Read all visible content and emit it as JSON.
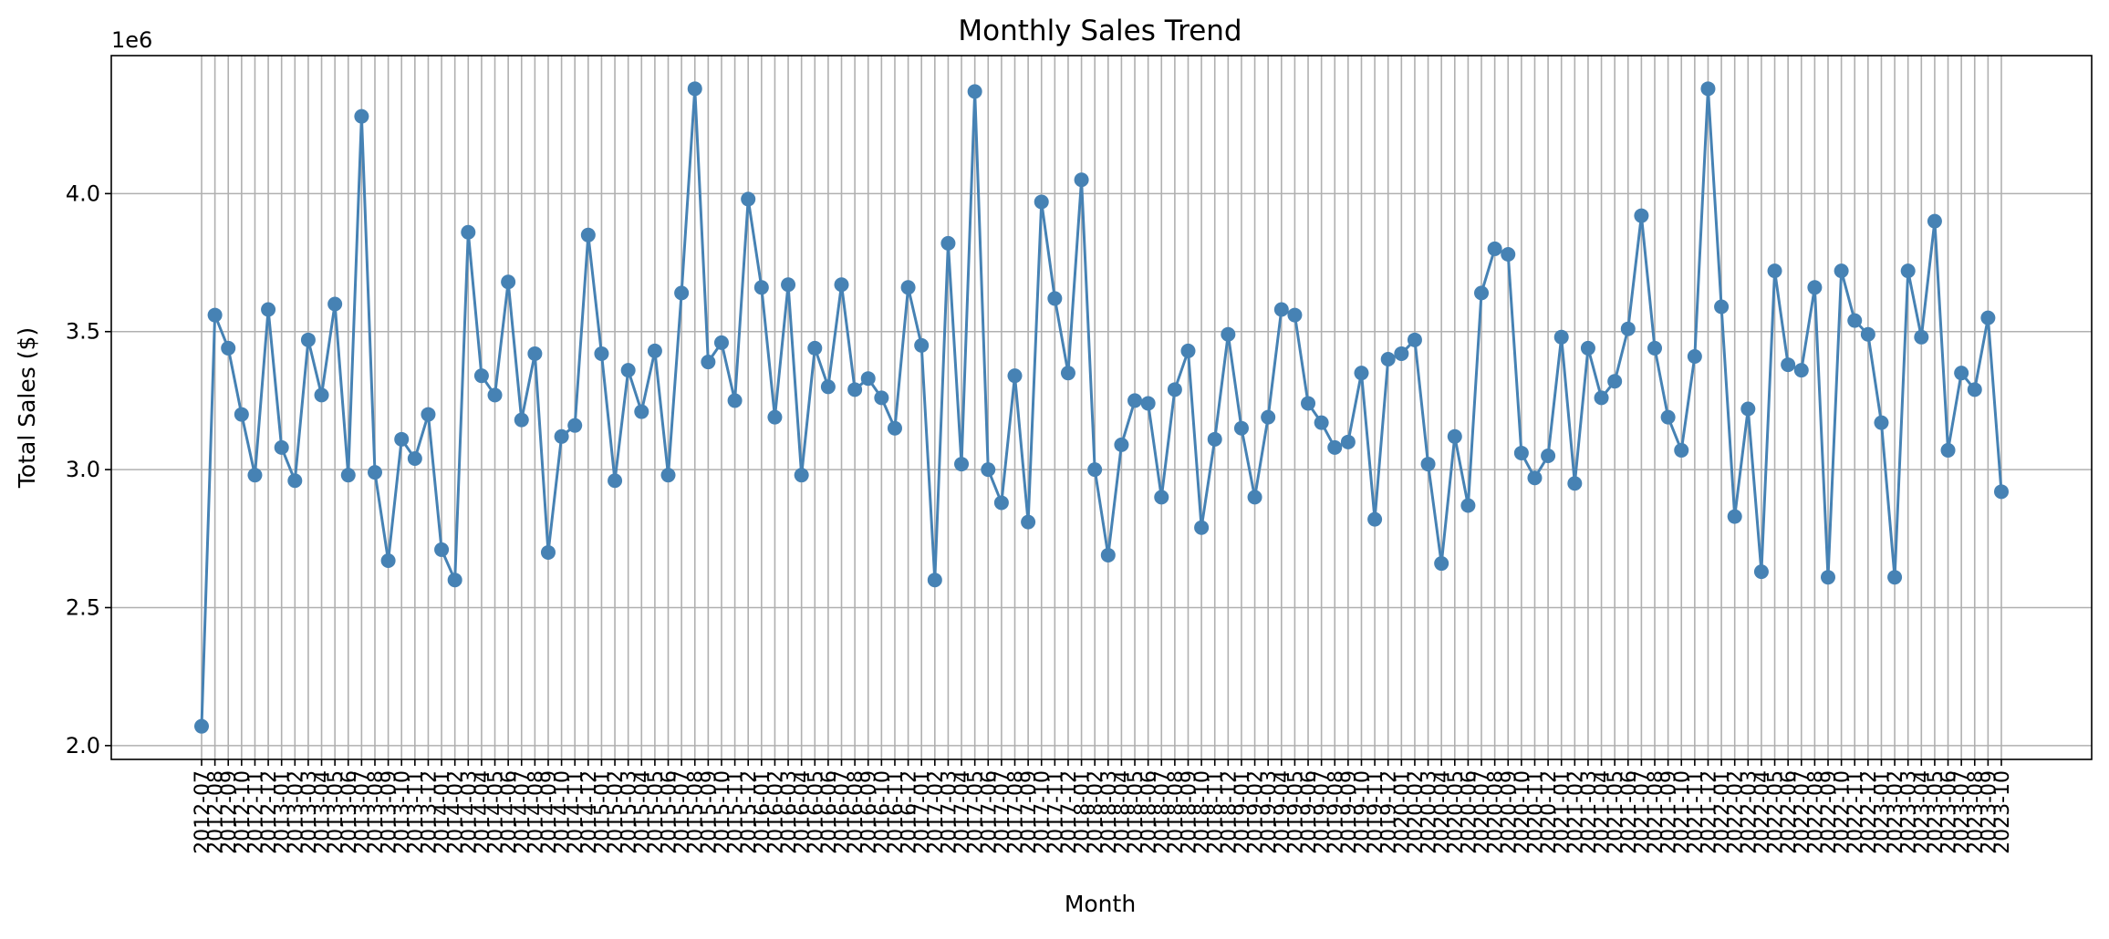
{
  "chart_data": {
    "type": "line",
    "title": "Monthly Sales Trend",
    "xlabel": "Month",
    "ylabel": "Total Sales ($)",
    "y_offset_label": "1e6",
    "ylim": [
      1.95,
      4.5
    ],
    "y_ticks": [
      2.0,
      2.5,
      3.0,
      3.5,
      4.0
    ],
    "y_tick_labels": [
      "2.0",
      "2.5",
      "3.0",
      "3.5",
      "4.0"
    ],
    "grid": true,
    "line_color": "#4682b4",
    "x": [
      "2012-07",
      "2012-08",
      "2012-09",
      "2012-10",
      "2012-11",
      "2012-12",
      "2013-01",
      "2013-02",
      "2013-03",
      "2013-04",
      "2013-05",
      "2013-06",
      "2013-07",
      "2013-08",
      "2013-09",
      "2013-10",
      "2013-11",
      "2013-12",
      "2014-01",
      "2014-02",
      "2014-03",
      "2014-04",
      "2014-05",
      "2014-06",
      "2014-07",
      "2014-08",
      "2014-09",
      "2014-10",
      "2014-11",
      "2014-12",
      "2015-01",
      "2015-02",
      "2015-03",
      "2015-04",
      "2015-05",
      "2015-06",
      "2015-07",
      "2015-08",
      "2015-09",
      "2015-10",
      "2015-11",
      "2015-12",
      "2016-01",
      "2016-02",
      "2016-03",
      "2016-04",
      "2016-05",
      "2016-06",
      "2016-07",
      "2016-08",
      "2016-09",
      "2016-10",
      "2016-11",
      "2016-12",
      "2017-01",
      "2017-02",
      "2017-03",
      "2017-04",
      "2017-05",
      "2017-06",
      "2017-07",
      "2017-08",
      "2017-09",
      "2017-10",
      "2017-11",
      "2017-12",
      "2018-01",
      "2018-02",
      "2018-03",
      "2018-04",
      "2018-05",
      "2018-06",
      "2018-07",
      "2018-08",
      "2018-09",
      "2018-10",
      "2018-11",
      "2018-12",
      "2019-01",
      "2019-02",
      "2019-03",
      "2019-04",
      "2019-05",
      "2019-06",
      "2019-07",
      "2019-08",
      "2019-09",
      "2019-10",
      "2019-11",
      "2019-12",
      "2020-01",
      "2020-02",
      "2020-03",
      "2020-04",
      "2020-05",
      "2020-06",
      "2020-07",
      "2020-08",
      "2020-09",
      "2020-10",
      "2020-11",
      "2020-12",
      "2021-01",
      "2021-02",
      "2021-03",
      "2021-04",
      "2021-05",
      "2021-06",
      "2021-07",
      "2021-08",
      "2021-09",
      "2021-10",
      "2021-11",
      "2021-12",
      "2022-01",
      "2022-02",
      "2022-03",
      "2022-04",
      "2022-05",
      "2022-06",
      "2022-07",
      "2022-08",
      "2022-09",
      "2022-10",
      "2022-11",
      "2022-12",
      "2023-01",
      "2023-02",
      "2023-03",
      "2023-04",
      "2023-05",
      "2023-06",
      "2023-07",
      "2023-08",
      "2023-09",
      "2023-10"
    ],
    "series": [
      {
        "values": [
          2.07,
          3.56,
          3.44,
          3.2,
          2.98,
          3.58,
          3.08,
          2.96,
          3.47,
          3.27,
          3.6,
          2.98,
          4.28,
          2.99,
          2.67,
          3.11,
          3.04,
          3.2,
          2.71,
          2.6,
          3.86,
          3.34,
          3.27,
          3.68,
          3.18,
          3.42,
          2.7,
          3.12,
          3.16,
          3.85,
          3.42,
          2.96,
          3.36,
          3.21,
          3.43,
          2.98,
          3.64,
          4.38,
          3.39,
          3.46,
          3.25,
          3.98,
          3.66,
          3.19,
          3.67,
          2.98,
          3.44,
          3.3,
          3.67,
          3.29,
          3.33,
          3.26,
          3.15,
          3.66,
          3.45,
          2.6,
          3.82,
          3.02,
          4.37,
          3.0,
          2.88,
          3.34,
          2.81,
          3.97,
          3.62,
          3.35,
          4.05,
          3.0,
          2.69,
          3.09,
          3.25,
          3.24,
          2.9,
          3.29,
          3.43,
          2.79,
          3.11,
          3.49,
          3.15,
          2.9,
          3.19,
          3.58,
          3.56,
          3.24,
          3.17,
          3.08,
          3.1,
          3.35,
          2.82,
          3.4,
          3.42,
          3.47,
          3.02,
          2.66,
          3.12,
          2.87,
          3.64,
          3.8,
          3.78,
          3.06,
          2.97,
          3.05,
          3.48,
          2.95,
          3.44,
          3.26,
          3.32,
          3.51,
          3.92,
          3.44,
          3.19,
          3.07,
          3.41,
          4.38,
          3.59,
          2.83,
          3.22,
          2.63,
          3.72,
          3.38,
          3.36,
          3.66,
          2.61,
          3.72,
          3.54,
          3.49,
          3.17,
          2.61,
          3.72,
          3.48,
          3.9,
          3.07,
          3.35,
          3.29,
          3.55,
          2.92
        ]
      }
    ]
  }
}
